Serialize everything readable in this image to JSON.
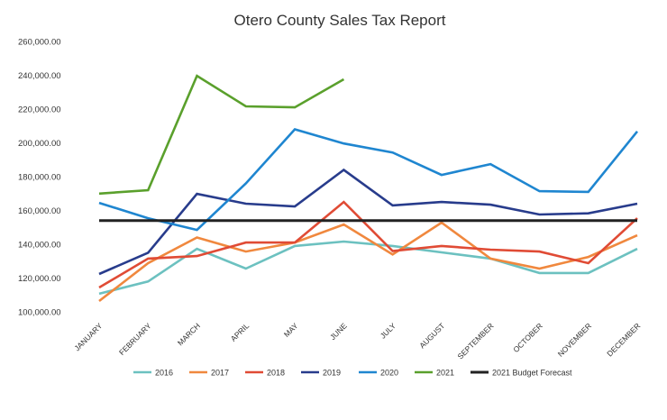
{
  "chart_data": {
    "type": "line",
    "title": "Otero County Sales Tax Report",
    "xlabel": "",
    "ylabel": "",
    "categories": [
      "JANUARY",
      "FEBRUARY",
      "MARCH",
      "APRIL",
      "MAY",
      "JUNE",
      "JULY",
      "AUGUST",
      "SEPTEMBER",
      "OCTOBER",
      "NOVEMBER",
      "DECEMBER"
    ],
    "ylim": [
      100000,
      260000
    ],
    "yticks": [
      100000,
      120000,
      140000,
      160000,
      180000,
      200000,
      220000,
      240000,
      260000
    ],
    "ytick_labels": [
      "100,000.00",
      "120,000.00",
      "140,000.00",
      "160,000.00",
      "180,000.00",
      "200,000.00",
      "220,000.00",
      "240,000.00",
      "260,000.00"
    ],
    "grid": false,
    "legend_position": "bottom",
    "series": [
      {
        "name": "2016",
        "color": "#6cc1c0",
        "values": [
          110700,
          118000,
          137300,
          125600,
          139000,
          141600,
          139000,
          135200,
          131500,
          123000,
          123000,
          137300
        ]
      },
      {
        "name": "2017",
        "color": "#f0883e",
        "values": [
          106400,
          128800,
          144000,
          135700,
          141000,
          151700,
          134000,
          152800,
          131500,
          125600,
          132500,
          145300
        ]
      },
      {
        "name": "2018",
        "color": "#e04b35",
        "values": [
          114400,
          131500,
          133000,
          141000,
          141000,
          165000,
          136000,
          139000,
          136800,
          135700,
          128800,
          155400
        ]
      },
      {
        "name": "2019",
        "color": "#283c8c",
        "values": [
          122400,
          135000,
          169800,
          164000,
          162400,
          184000,
          163000,
          165000,
          163400,
          157600,
          158300,
          164000
        ]
      },
      {
        "name": "2020",
        "color": "#1f86d0",
        "values": [
          164500,
          155400,
          148500,
          176000,
          208000,
          199600,
          194300,
          181000,
          187400,
          171400,
          171000,
          206800
        ]
      },
      {
        "name": "2021",
        "color": "#5aa02c",
        "values": [
          170000,
          172000,
          239700,
          221600,
          221000,
          237600,
          null,
          null,
          null,
          null,
          null,
          null
        ]
      },
      {
        "name": "2021 Budget Forecast",
        "color": "#222222",
        "values": [
          154000,
          154000,
          154000,
          154000,
          154000,
          154000,
          154000,
          154000,
          154000,
          154000,
          154000,
          154000
        ]
      }
    ]
  }
}
